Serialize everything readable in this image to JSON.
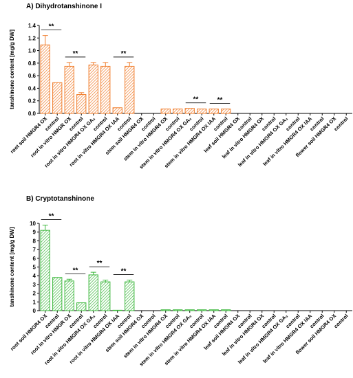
{
  "chart_data": [
    {
      "type": "bar",
      "title": "A) Dihydrotanshinone I",
      "y_label": "tanshinone content [mg/g DW]",
      "categories": [
        "root soil HMGR4 OX",
        "control",
        "root in vitro HMGR OX",
        "control",
        "root in vitro HMGR4 OX GA₃",
        "control",
        "root in vitro HMGR4 OX IAA",
        "control",
        "stem soil HMGR4 OX",
        "control",
        "stem in vitro HMGR4 OX",
        "control",
        "stem in vitro HMGR4 OX GA₃",
        "control",
        "stem in vitro HMGR4 OX IAA",
        "control",
        "leaf soil HMGR4 OX",
        "control",
        "leaf in vitro HMGR4 OX",
        "control",
        "leaf in vitro HMGR4 OX GA₃",
        "control",
        "leaf in vitro HMGR4 OX IAA",
        "control",
        "flower soil HMGR4 OX",
        "control"
      ],
      "values": [
        1.09,
        0.49,
        0.75,
        0.3,
        0.77,
        0.75,
        0.09,
        0.75,
        0,
        0,
        0.07,
        0.07,
        0.08,
        0.07,
        0.07,
        0.07,
        0,
        0,
        0,
        0,
        0,
        0,
        0,
        0,
        0,
        0
      ],
      "errors": [
        0.15,
        0,
        0.06,
        0.03,
        0.04,
        0.06,
        0,
        0.06,
        0,
        0,
        0,
        0,
        0,
        0,
        0,
        0,
        0,
        0,
        0,
        0,
        0,
        0,
        0,
        0,
        0,
        0
      ],
      "significance_labels": [
        null,
        "**",
        null,
        "**",
        null,
        null,
        null,
        "**",
        null,
        null,
        null,
        null,
        null,
        "**",
        null,
        "**",
        null,
        null,
        null,
        null,
        null,
        null,
        null,
        null,
        null,
        null
      ],
      "color": "#f07c2a",
      "ylim": [
        0,
        1.4
      ],
      "yticks": [
        {
          "value": 0,
          "label": "0.0"
        },
        {
          "value": 0.2,
          "label": "0.2"
        },
        {
          "value": 0.4,
          "label": "0.4"
        },
        {
          "value": 0.6,
          "label": "0.6"
        },
        {
          "value": 0.8,
          "label": "0.8"
        },
        {
          "value": 1,
          "label": "1.0"
        },
        {
          "value": 1.2,
          "label": "1.2"
        },
        {
          "value": 1.4,
          "label": "1.4"
        }
      ]
    },
    {
      "type": "bar",
      "title": "B) Cryptotanshinone",
      "y_label": "tanshinone content [mg/g DW]",
      "categories": [
        "root soil HMGR4 OX",
        "control",
        "root in vitro HMGR OX",
        "control",
        "root in vitro HMGR4 OX GA₃",
        "control",
        "root in vitro HMGR4 OX IAA",
        "control",
        "stem soil HMGR4 OX",
        "control",
        "stem in vitro HMGR4 OX",
        "control",
        "stem in vitro HMGR4 OX GA₃",
        "control",
        "stem in vitro HMGR4 OX IAA",
        "control",
        "leaf soil HMGR4 OX",
        "control",
        "leaf in vitro HMGR4 OX",
        "control",
        "leaf in vitro HMGR4 OX GA₃",
        "control",
        "leaf in vitro HMGR4 OX IAA",
        "control",
        "flower soil HMGR4 OX",
        "control"
      ],
      "values": [
        9.2,
        3.8,
        3.4,
        0.9,
        4.1,
        3.3,
        0.05,
        3.3,
        0,
        0,
        0.1,
        0.1,
        0.1,
        0.1,
        0.1,
        0.1,
        0,
        0,
        0,
        0,
        0,
        0,
        0,
        0,
        0,
        0
      ],
      "errors": [
        0.6,
        0,
        0.2,
        0,
        0.3,
        0.2,
        0,
        0.2,
        0,
        0,
        0,
        0,
        0,
        0,
        0,
        0,
        0,
        0,
        0,
        0,
        0,
        0,
        0,
        0,
        0,
        0
      ],
      "significance_labels": [
        null,
        "**",
        null,
        "**",
        null,
        "**",
        null,
        "**",
        null,
        null,
        null,
        null,
        null,
        null,
        null,
        null,
        null,
        null,
        null,
        null,
        null,
        null,
        null,
        null,
        null,
        null
      ],
      "color": "#3cb83c",
      "ylim": [
        0,
        10
      ],
      "yticks": [
        0,
        1,
        2,
        3,
        4,
        5,
        6,
        7,
        8,
        9,
        10
      ]
    }
  ]
}
